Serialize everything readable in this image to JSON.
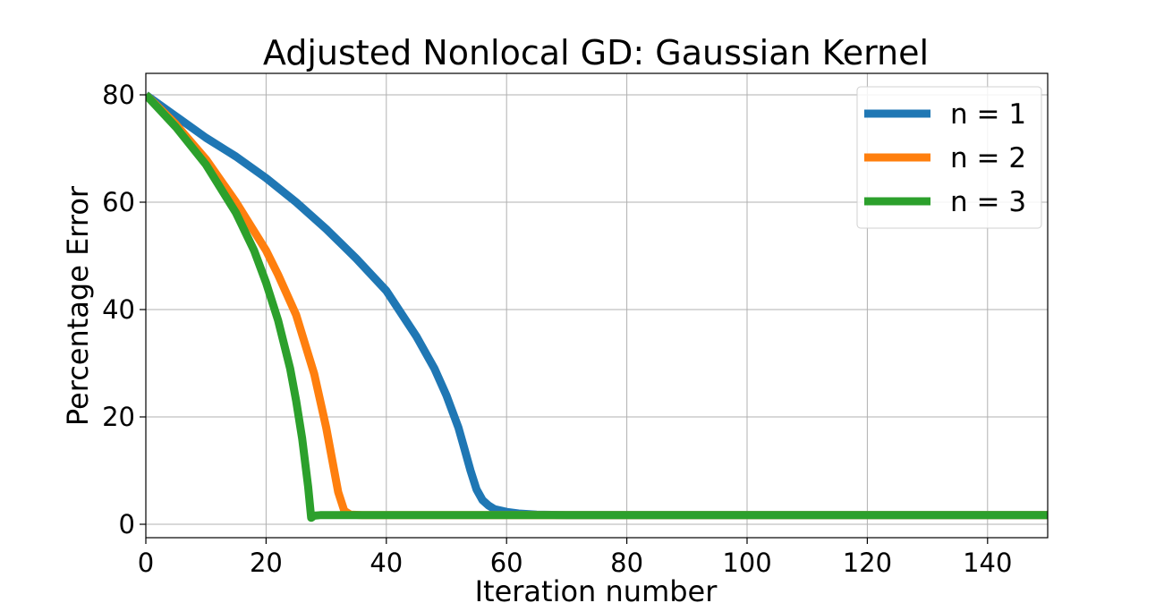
{
  "chart_data": {
    "type": "line",
    "title": "Adjusted Nonlocal GD: Gaussian Kernel",
    "xlabel": "Iteration number",
    "ylabel": "Percentage Error",
    "xlim": [
      0,
      150
    ],
    "ylim": [
      -2.5,
      84
    ],
    "xticks": [
      0,
      20,
      40,
      60,
      80,
      100,
      120,
      140
    ],
    "yticks": [
      0,
      20,
      40,
      60,
      80
    ],
    "grid": true,
    "legend_position": "top-right",
    "series": [
      {
        "name": "n = 1",
        "color": "#1f77b4",
        "x": [
          0,
          5,
          10,
          15,
          20,
          25,
          30,
          35,
          40,
          45,
          48,
          50,
          52,
          53,
          54,
          55,
          56,
          57,
          58,
          60,
          62,
          65,
          70,
          80,
          100,
          120,
          140,
          150
        ],
        "y": [
          80,
          76,
          72,
          68.5,
          64.5,
          60,
          55,
          49.5,
          43.5,
          35,
          29,
          24,
          18,
          14,
          10,
          6.5,
          4.5,
          3.5,
          2.8,
          2.3,
          2.0,
          1.8,
          1.7,
          1.7,
          1.7,
          1.7,
          1.7,
          1.7
        ]
      },
      {
        "name": "n = 2",
        "color": "#ff7f0e",
        "x": [
          0,
          5,
          10,
          15,
          20,
          22,
          25,
          28,
          30,
          31,
          32,
          33,
          34,
          36,
          40,
          60,
          100,
          150
        ],
        "y": [
          80,
          74.5,
          68,
          60,
          51,
          46.5,
          39,
          28,
          18,
          12,
          6,
          2.5,
          1.8,
          1.7,
          1.7,
          1.7,
          1.7,
          1.7
        ]
      },
      {
        "name": "n = 3",
        "color": "#2ca02c",
        "x": [
          0,
          5,
          10,
          15,
          18,
          20,
          22,
          24,
          25,
          26,
          27,
          27.5,
          28,
          29,
          30,
          40,
          60,
          100,
          150
        ],
        "y": [
          80,
          74,
          67,
          58,
          51,
          45,
          38,
          29,
          23,
          16,
          7,
          1.2,
          1.6,
          1.7,
          1.7,
          1.7,
          1.7,
          1.7,
          1.7
        ]
      }
    ]
  }
}
